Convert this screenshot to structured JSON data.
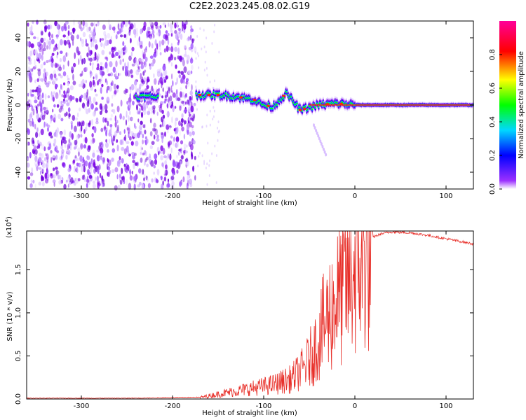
{
  "title": "C2E2.2023.245.08.02.G19",
  "chart_data": [
    {
      "type": "heatmap",
      "xlabel": "Height of straight line (km)",
      "ylabel": "Frequency (Hz)",
      "xlim": [
        -360,
        130
      ],
      "ylim": [
        -50,
        50
      ],
      "xticks": [
        -300,
        -200,
        -100,
        0,
        100
      ],
      "yticks": [
        -40,
        -20,
        0,
        20,
        40
      ],
      "colorbar": {
        "label": "Normalized spectral amplitude",
        "range": [
          0.0,
          1.0
        ],
        "ticks": [
          "0.0",
          "0.2",
          "0.4",
          "0.6",
          "0.8"
        ],
        "colors": [
          "#ffffff",
          "#7a00e6",
          "#0000ff",
          "#00e0ff",
          "#00ff00",
          "#ffff00",
          "#ff0000",
          "#ff0099"
        ]
      },
      "noise_region_x": [
        -360,
        -175
      ],
      "ridge": [
        {
          "x": -240,
          "y": 5
        },
        {
          "x": -220,
          "y": 5
        },
        {
          "x": -170,
          "y": 6
        },
        {
          "x": -150,
          "y": 6
        },
        {
          "x": -130,
          "y": 5
        },
        {
          "x": -110,
          "y": 3
        },
        {
          "x": -100,
          "y": 0
        },
        {
          "x": -90,
          "y": -1
        },
        {
          "x": -75,
          "y": 7
        },
        {
          "x": -60,
          "y": -3
        },
        {
          "x": -40,
          "y": 0
        },
        {
          "x": -20,
          "y": 1
        },
        {
          "x": 0,
          "y": 0
        },
        {
          "x": 50,
          "y": 0
        },
        {
          "x": 130,
          "y": 0
        }
      ]
    },
    {
      "type": "line",
      "xlabel": "Height of straight line (km)",
      "ylabel": "SNR (10 * v/v)",
      "scale_note": "(x10",
      "scale_exp": "4",
      "scale_close": ")",
      "xlim": [
        -360,
        130
      ],
      "ylim": [
        0,
        1.95
      ],
      "xticks": [
        -300,
        -200,
        -100,
        0,
        100
      ],
      "yticks": [
        "0.0",
        "0.5",
        "1.0",
        "1.5"
      ],
      "color": "#e8312b",
      "series": [
        {
          "values_x": [
            -360,
            -250,
            -170,
            -150,
            -130,
            -110,
            -90,
            -70,
            -55,
            -45,
            -35,
            -25,
            -15,
            -5,
            0,
            10,
            20,
            30,
            40,
            60,
            80,
            100,
            120,
            130
          ],
          "values_y": [
            0.01,
            0.01,
            0.02,
            0.06,
            0.1,
            0.14,
            0.18,
            0.25,
            0.4,
            0.6,
            0.9,
            1.15,
            1.35,
            1.55,
            1.65,
            1.8,
            1.88,
            1.92,
            1.94,
            1.93,
            1.9,
            1.86,
            1.82,
            1.8
          ]
        }
      ]
    }
  ]
}
